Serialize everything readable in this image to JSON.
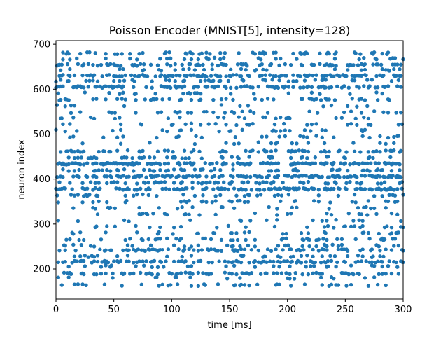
{
  "chart_data": {
    "type": "scatter",
    "title": "Poisson Encoder (MNIST[5], intensity=128)",
    "xlabel": "time [ms]",
    "ylabel": "neuron index",
    "xlim": [
      0,
      300
    ],
    "ylim": [
      133,
      708
    ],
    "grid": false,
    "x_ticks": [
      0,
      50,
      100,
      150,
      200,
      250,
      300
    ],
    "y_ticks": [
      200,
      300,
      400,
      500,
      600,
      700
    ],
    "marker_color": "#1f77b4",
    "series": [
      {
        "neuron_rows": [
          {
            "neuron": 164,
            "rate": 0.13
          },
          {
            "neuron": 180,
            "rate": 0.06
          },
          {
            "neuron": 190,
            "rate": 0.22
          },
          {
            "neuron": 206,
            "rate": 0.1
          },
          {
            "neuron": 216,
            "rate": 0.35
          },
          {
            "neuron": 228,
            "rate": 0.15
          },
          {
            "neuron": 242,
            "rate": 0.3
          },
          {
            "neuron": 252,
            "rate": 0.12
          },
          {
            "neuron": 266,
            "rate": 0.16
          },
          {
            "neuron": 280,
            "rate": 0.08
          },
          {
            "neuron": 294,
            "rate": 0.09
          },
          {
            "neuron": 308,
            "rate": 0.06
          },
          {
            "neuron": 322,
            "rate": 0.08
          },
          {
            "neuron": 336,
            "rate": 0.1
          },
          {
            "neuron": 350,
            "rate": 0.14
          },
          {
            "neuron": 364,
            "rate": 0.14
          },
          {
            "neuron": 378,
            "rate": 0.38
          },
          {
            "neuron": 392,
            "rate": 0.16
          },
          {
            "neuron": 406,
            "rate": 0.38
          },
          {
            "neuron": 420,
            "rate": 0.2
          },
          {
            "neuron": 434,
            "rate": 0.38
          },
          {
            "neuron": 448,
            "rate": 0.16
          },
          {
            "neuron": 462,
            "rate": 0.28
          },
          {
            "neuron": 480,
            "rate": 0.05
          },
          {
            "neuron": 494,
            "rate": 0.1
          },
          {
            "neuron": 508,
            "rate": 0.05
          },
          {
            "neuron": 522,
            "rate": 0.1
          },
          {
            "neuron": 536,
            "rate": 0.05
          },
          {
            "neuron": 549,
            "rate": 0.1
          },
          {
            "neuron": 563,
            "rate": 0.06
          },
          {
            "neuron": 577,
            "rate": 0.14
          },
          {
            "neuron": 591,
            "rate": 0.08
          },
          {
            "neuron": 605,
            "rate": 0.32
          },
          {
            "neuron": 619,
            "rate": 0.16
          },
          {
            "neuron": 630,
            "rate": 0.38
          },
          {
            "neuron": 643,
            "rate": 0.12
          },
          {
            "neuron": 654,
            "rate": 0.3
          },
          {
            "neuron": 668,
            "rate": 0.08
          },
          {
            "neuron": 680,
            "rate": 0.2
          }
        ]
      }
    ]
  }
}
